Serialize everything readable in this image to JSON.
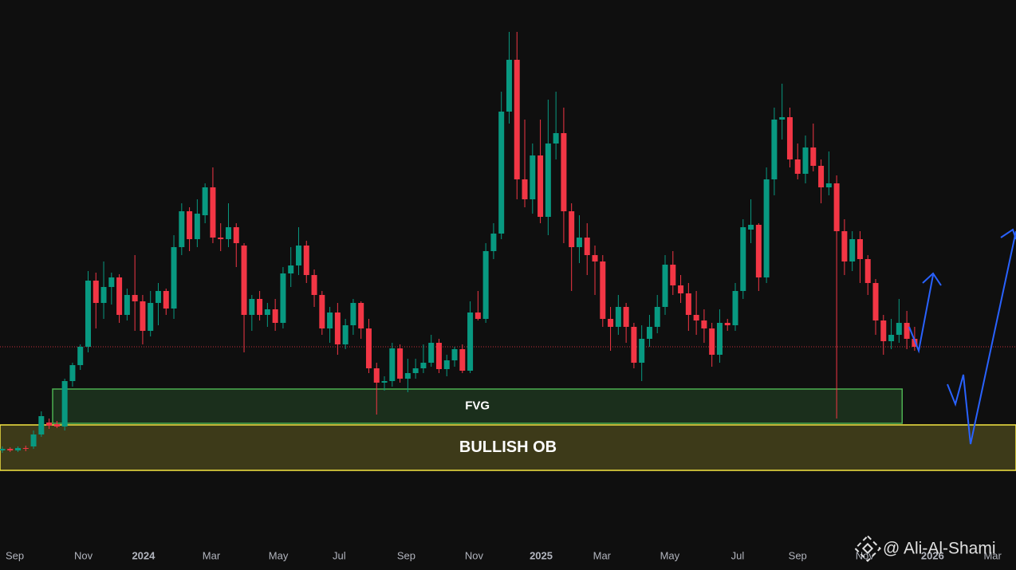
{
  "chart_data": {
    "type": "candlestick",
    "open": [
      135,
      137,
      135,
      138,
      140,
      155,
      170,
      168,
      165,
      222,
      242,
      265,
      348,
      320,
      340,
      352,
      305,
      330,
      322,
      285,
      320,
      335,
      313,
      390,
      435,
      400,
      430,
      465,
      402,
      400,
      415,
      392,
      305,
      325,
      305,
      312,
      295,
      357,
      367,
      392,
      355,
      330,
      288,
      308,
      268,
      292,
      320,
      288,
      238,
      220,
      222,
      263,
      225,
      232,
      238,
      245,
      270,
      237,
      248,
      262,
      235,
      308,
      300,
      385,
      407,
      560,
      625,
      475,
      450,
      505,
      428,
      520,
      533,
      435,
      390,
      402,
      380,
      372,
      300,
      290,
      315,
      290,
      245,
      275,
      290,
      315,
      368,
      342,
      332,
      305,
      298,
      288,
      255,
      295,
      292,
      335,
      412,
      418,
      352,
      475,
      550,
      553,
      500,
      482,
      515,
      492,
      465,
      470,
      410,
      372,
      400,
      375,
      345,
      298,
      272,
      280,
      295,
      275
    ],
    "high": [
      140,
      139,
      140,
      141,
      160,
      184,
      175,
      172,
      225,
      245,
      268,
      360,
      358,
      372,
      358,
      356,
      338,
      380,
      330,
      335,
      345,
      338,
      405,
      445,
      440,
      450,
      470,
      490,
      420,
      445,
      420,
      395,
      330,
      335,
      320,
      325,
      365,
      390,
      415,
      398,
      362,
      335,
      315,
      320,
      300,
      325,
      322,
      300,
      245,
      228,
      270,
      268,
      250,
      250,
      268,
      280,
      275,
      255,
      265,
      268,
      322,
      335,
      395,
      420,
      585,
      660,
      660,
      550,
      520,
      550,
      575,
      585,
      565,
      445,
      430,
      420,
      392,
      380,
      315,
      330,
      320,
      295,
      292,
      305,
      330,
      380,
      385,
      355,
      345,
      335,
      312,
      295,
      312,
      300,
      345,
      425,
      450,
      420,
      490,
      565,
      595,
      565,
      520,
      530,
      545,
      500,
      510,
      480,
      425,
      410,
      410,
      380,
      350,
      305,
      300,
      325,
      310,
      290
    ],
    "low": [
      132,
      133,
      133,
      134,
      137,
      152,
      162,
      163,
      160,
      215,
      236,
      258,
      288,
      300,
      318,
      295,
      298,
      285,
      268,
      278,
      292,
      305,
      300,
      380,
      385,
      390,
      420,
      395,
      385,
      390,
      365,
      258,
      285,
      298,
      290,
      285,
      288,
      340,
      355,
      345,
      315,
      280,
      270,
      255,
      262,
      280,
      275,
      232,
      180,
      210,
      215,
      220,
      208,
      225,
      232,
      240,
      232,
      228,
      240,
      232,
      232,
      298,
      295,
      375,
      400,
      545,
      450,
      440,
      432,
      420,
      405,
      500,
      395,
      335,
      370,
      355,
      330,
      290,
      260,
      280,
      270,
      238,
      222,
      265,
      282,
      305,
      330,
      320,
      285,
      280,
      270,
      240,
      245,
      285,
      285,
      325,
      395,
      335,
      345,
      455,
      525,
      490,
      475,
      470,
      485,
      445,
      455,
      175,
      355,
      360,
      345,
      330,
      280,
      255,
      262,
      270,
      262,
      260
    ],
    "close": [
      137,
      135,
      138,
      137,
      155,
      178,
      166,
      165,
      222,
      242,
      265,
      348,
      320,
      340,
      352,
      305,
      330,
      322,
      285,
      320,
      335,
      313,
      390,
      435,
      400,
      432,
      465,
      402,
      400,
      415,
      395,
      305,
      325,
      305,
      312,
      295,
      357,
      367,
      392,
      355,
      330,
      288,
      308,
      268,
      292,
      320,
      288,
      238,
      220,
      222,
      263,
      225,
      232,
      238,
      245,
      270,
      237,
      248,
      262,
      235,
      308,
      300,
      385,
      407,
      560,
      625,
      475,
      450,
      505,
      428,
      520,
      533,
      435,
      390,
      402,
      380,
      372,
      300,
      290,
      315,
      290,
      245,
      275,
      290,
      315,
      368,
      342,
      332,
      305,
      298,
      288,
      255,
      295,
      292,
      335,
      415,
      418,
      352,
      475,
      550,
      553,
      500,
      482,
      515,
      492,
      465,
      470,
      410,
      372,
      400,
      375,
      345,
      298,
      272,
      280,
      295,
      275,
      265
    ],
    "up_color": "#089981",
    "down_color": "#f23645",
    "xlim": [
      -0.3,
      130
    ],
    "ylim": [
      0,
      700
    ],
    "xticks": [
      {
        "value": 1.6,
        "label": "Sep"
      },
      {
        "value": 10.4,
        "label": "Nov"
      },
      {
        "value": 18.1,
        "label": "2024"
      },
      {
        "value": 26.8,
        "label": "Mar"
      },
      {
        "value": 35.4,
        "label": "May"
      },
      {
        "value": 43.2,
        "label": "Jul"
      },
      {
        "value": 51.8,
        "label": "Sep"
      },
      {
        "value": 60.5,
        "label": "Nov"
      },
      {
        "value": 69.1,
        "label": "2025"
      },
      {
        "value": 76.9,
        "label": "Mar"
      },
      {
        "value": 85.6,
        "label": "May"
      },
      {
        "value": 94.3,
        "label": "Jul"
      },
      {
        "value": 102,
        "label": "Sep"
      },
      {
        "value": 110.6,
        "label": "Nov"
      },
      {
        "value": 119.3,
        "label": "2026"
      },
      {
        "value": 127,
        "label": "Mar"
      }
    ],
    "price_line": 265,
    "zones": [
      {
        "label": "FVG",
        "x": [
          6.45,
          115.4
        ],
        "y": [
          169,
          212
        ],
        "color": "#4caf50"
      },
      {
        "label": "BULLISH OB",
        "x": [
          -0.3,
          130
        ],
        "y": [
          110,
          167
        ],
        "color": "#f5e642"
      }
    ],
    "watermark": "@ Ali-Al-Shami"
  }
}
